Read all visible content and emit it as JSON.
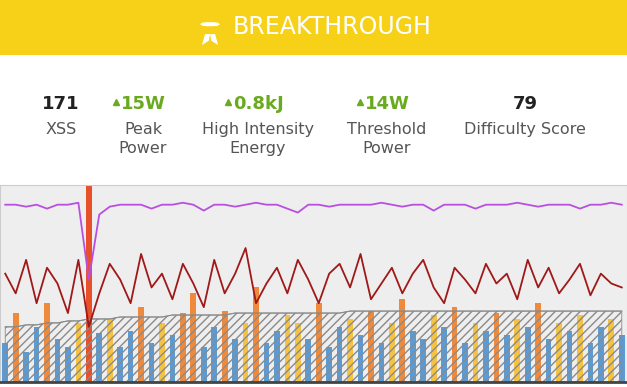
{
  "header": {
    "title": "BREAKTHROUGH",
    "color": "#f7d117"
  },
  "stats": [
    {
      "value": "171",
      "label": "XSS",
      "color": "#222222"
    },
    {
      "value": "15W",
      "label": "Peak\nPower",
      "color": "#6aaa1e",
      "marker": "triangle-up"
    },
    {
      "value": "0.8kJ",
      "label": "High Intensity\nEnergy",
      "color": "#6aaa1e",
      "marker": "triangle-up"
    },
    {
      "value": "14W",
      "label": "Threshold\nPower",
      "color": "#6aaa1e",
      "marker": "triangle-up"
    },
    {
      "value": "79",
      "label": "Difficulty Score",
      "color": "#222222"
    }
  ],
  "chart_data": {
    "type": "mixed",
    "tick_labels": false,
    "x": [
      0,
      1,
      2,
      3,
      4,
      5,
      6,
      7,
      8,
      9,
      10,
      11,
      12,
      13,
      14,
      15,
      16,
      17,
      18,
      19,
      20,
      21,
      22,
      23,
      24,
      25,
      26,
      27,
      28,
      29,
      30,
      31,
      32,
      33,
      34,
      35,
      36,
      37,
      38,
      39,
      40,
      41,
      42,
      43,
      44,
      45,
      46,
      47,
      48,
      49,
      50,
      51,
      52,
      53,
      54,
      55,
      56,
      57,
      58,
      59
    ],
    "xlim": [
      -0.5,
      59.5
    ],
    "ylim": [
      0,
      100
    ],
    "series": [
      {
        "type": "bar",
        "values": [
          20,
          35,
          15,
          28,
          40,
          22,
          18,
          30,
          100,
          25,
          32,
          18,
          26,
          38,
          20,
          30,
          24,
          35,
          45,
          18,
          28,
          36,
          22,
          30,
          48,
          20,
          26,
          34,
          30,
          22,
          40,
          18,
          28,
          32,
          24,
          36,
          20,
          30,
          42,
          26,
          22,
          34,
          28,
          38,
          20,
          30,
          26,
          35,
          24,
          32,
          28,
          40,
          22,
          30,
          26,
          34,
          20,
          28,
          32,
          24
        ],
        "colors": [
          "#5b9bd5",
          "#ef8a3c",
          "#5b9bd5",
          "#5b9bd5",
          "#ef8a3c",
          "#5b9bd5",
          "#5b9bd5",
          "#f5c242",
          "#e8502a",
          "#5b9bd5",
          "#f5c242",
          "#5b9bd5",
          "#5b9bd5",
          "#ef8a3c",
          "#5b9bd5",
          "#f5c242",
          "#5b9bd5",
          "#ef8a3c",
          "#ef8a3c",
          "#5b9bd5",
          "#5b9bd5",
          "#ef8a3c",
          "#5b9bd5",
          "#f5c242",
          "#ef8a3c",
          "#5b9bd5",
          "#5b9bd5",
          "#f5c242",
          "#f5c242",
          "#5b9bd5",
          "#ef8a3c",
          "#5b9bd5",
          "#5b9bd5",
          "#f5c242",
          "#5b9bd5",
          "#ef8a3c",
          "#5b9bd5",
          "#f5c242",
          "#ef8a3c",
          "#5b9bd5",
          "#5b9bd5",
          "#f5c242",
          "#5b9bd5",
          "#ef8a3c",
          "#5b9bd5",
          "#f5c242",
          "#5b9bd5",
          "#ef8a3c",
          "#5b9bd5",
          "#f5c242",
          "#5b9bd5",
          "#ef8a3c",
          "#5b9bd5",
          "#f5c242",
          "#5b9bd5",
          "#f5c242",
          "#5b9bd5",
          "#5b9bd5",
          "#f5c242",
          "#5b9bd5"
        ]
      },
      {
        "type": "area",
        "color": "#8a8a8a",
        "values": [
          28,
          28,
          29,
          29,
          30,
          30,
          31,
          31,
          32,
          32,
          32,
          33,
          33,
          33,
          33,
          33,
          34,
          34,
          34,
          34,
          34,
          34,
          35,
          35,
          35,
          35,
          35,
          35,
          35,
          35,
          35,
          35,
          35,
          36,
          36,
          36,
          36,
          36,
          36,
          36,
          36,
          36,
          36,
          36,
          36,
          36,
          36,
          36,
          36,
          36,
          36,
          36,
          36,
          36,
          36,
          36,
          36,
          36,
          36,
          36
        ]
      },
      {
        "type": "line",
        "color": "#a01818",
        "values": [
          55,
          45,
          62,
          40,
          58,
          50,
          35,
          62,
          28,
          45,
          60,
          52,
          40,
          65,
          48,
          55,
          42,
          60,
          50,
          38,
          62,
          45,
          55,
          68,
          40,
          50,
          58,
          45,
          62,
          52,
          40,
          55,
          60,
          48,
          65,
          42,
          50,
          58,
          45,
          55,
          62,
          48,
          40,
          58,
          52,
          45,
          60,
          50,
          55,
          42,
          62,
          48,
          58,
          45,
          52,
          60,
          44,
          55,
          50,
          48
        ]
      },
      {
        "type": "line",
        "color": "#b94fe0",
        "values": [
          90,
          90,
          89,
          90,
          88,
          90,
          90,
          91,
          52,
          85,
          89,
          90,
          90,
          90,
          88,
          90,
          90,
          91,
          90,
          87,
          90,
          90,
          89,
          90,
          91,
          90,
          90,
          88,
          86,
          90,
          90,
          89,
          90,
          90,
          90,
          90,
          91,
          90,
          89,
          90,
          90,
          87,
          90,
          90,
          90,
          88,
          90,
          90,
          90,
          91,
          90,
          89,
          90,
          90,
          90,
          88,
          90,
          90,
          91,
          90
        ]
      }
    ]
  }
}
